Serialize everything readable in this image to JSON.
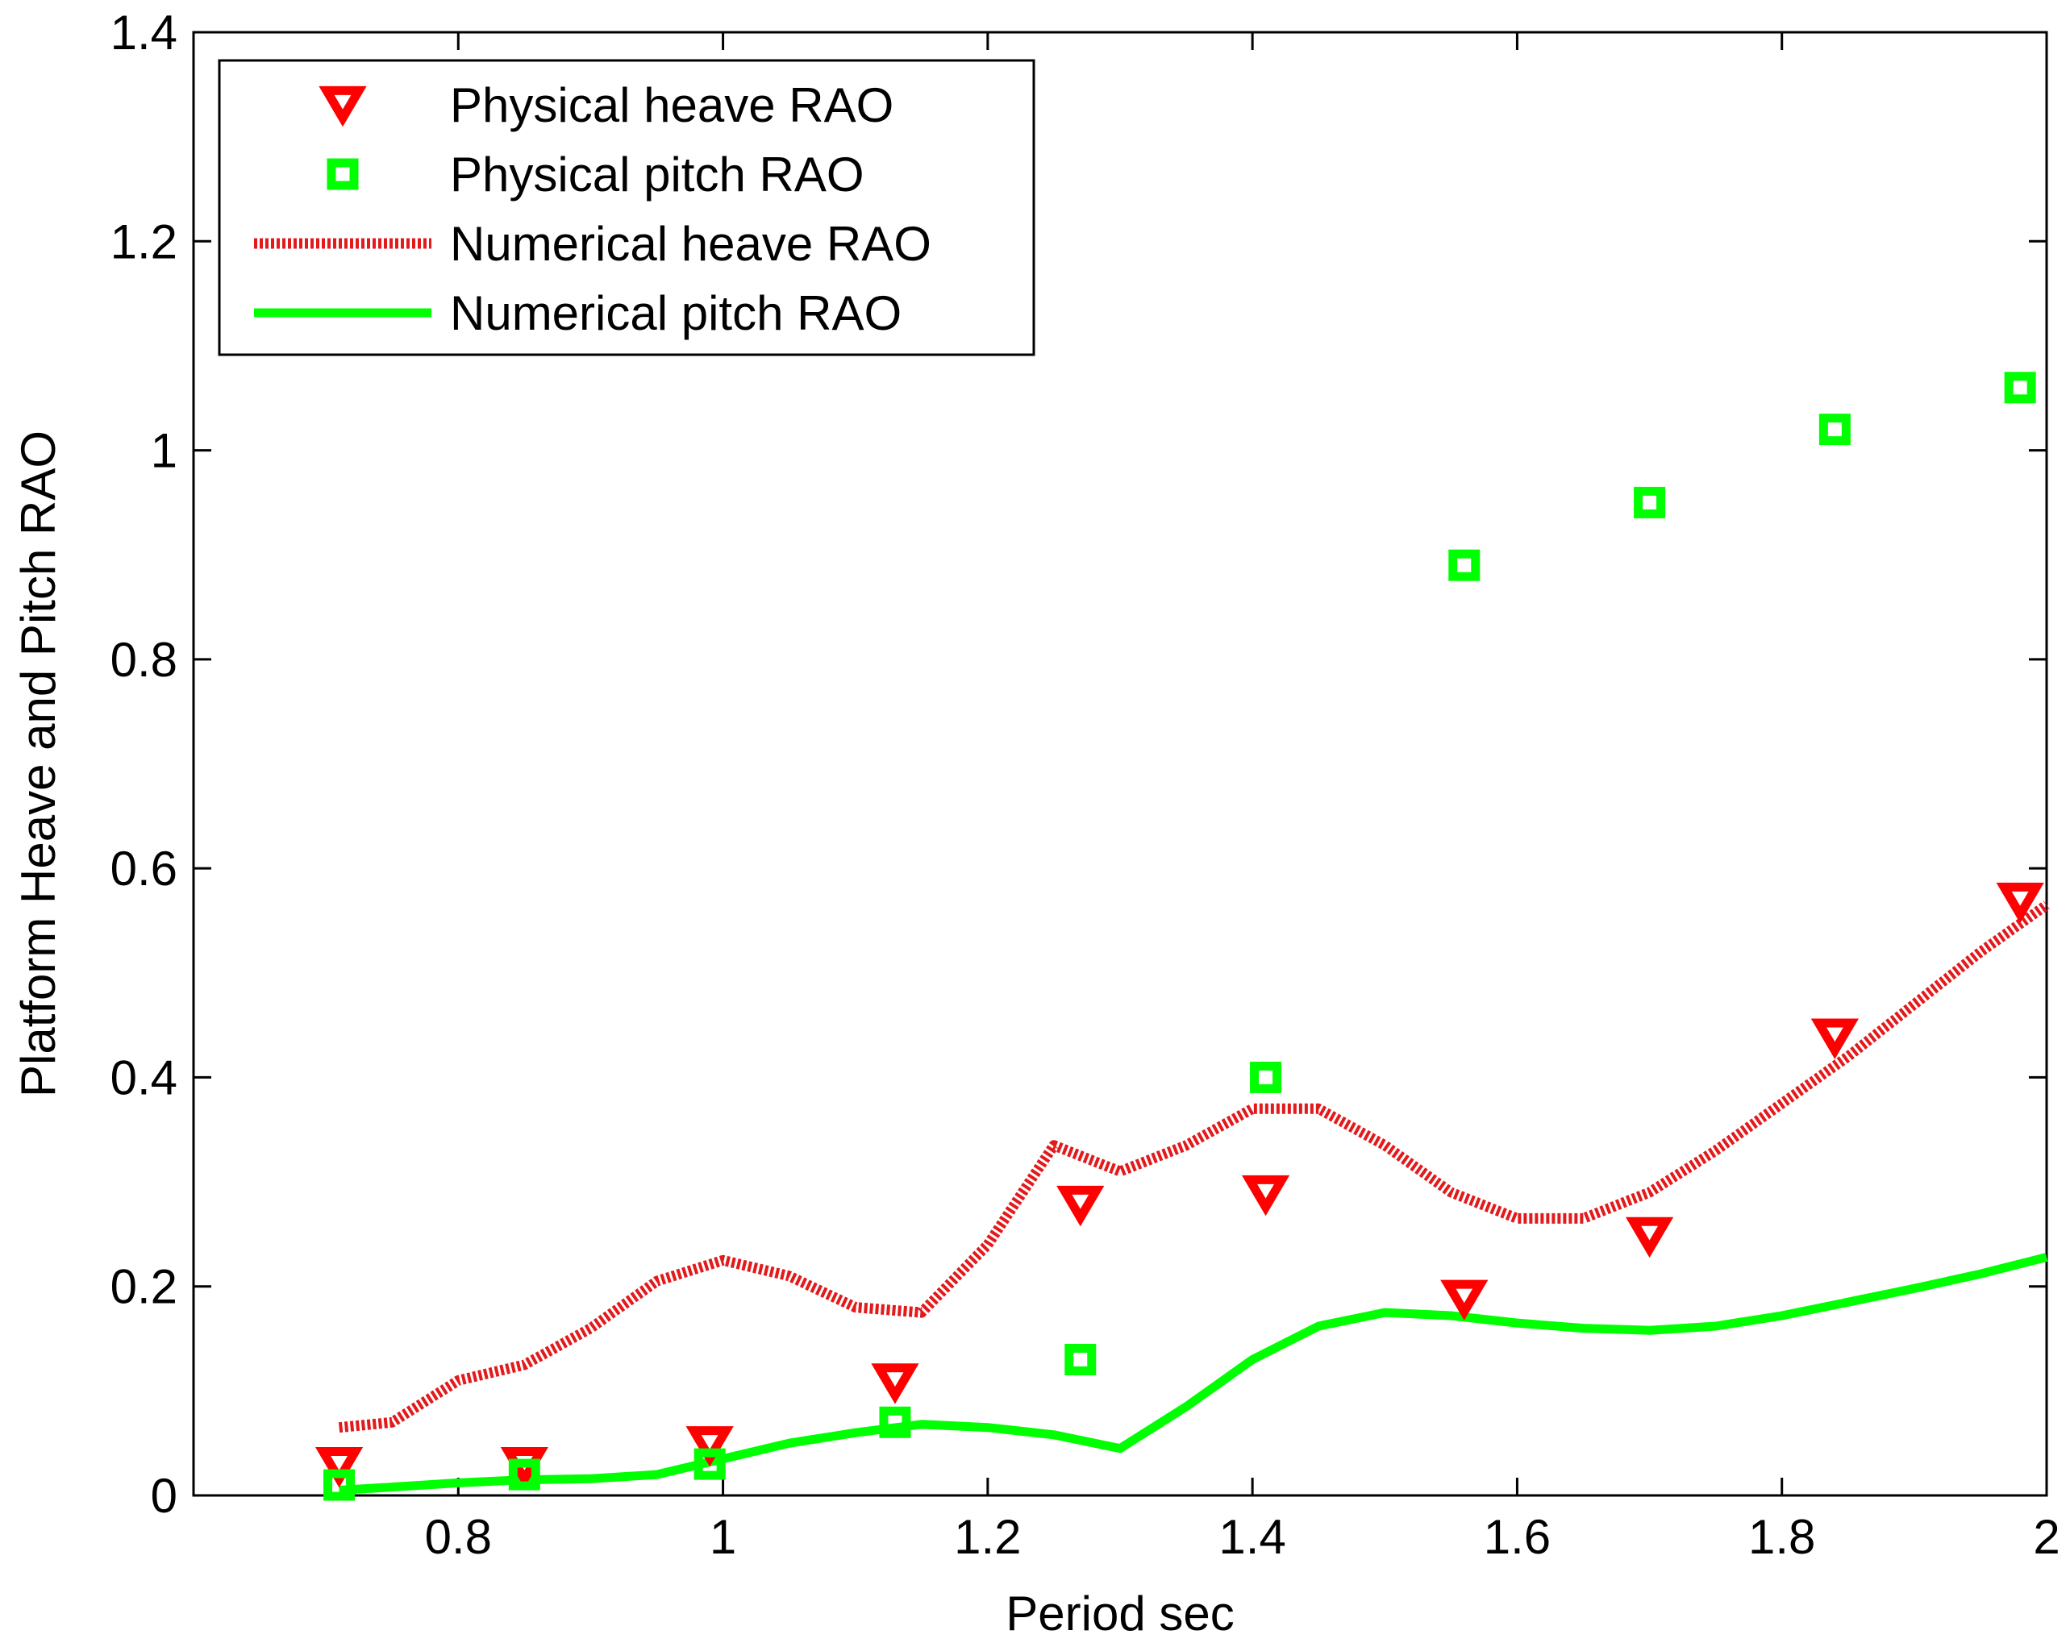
{
  "chart_data": {
    "type": "line",
    "title": "",
    "xlabel": "Period sec",
    "ylabel": "Platform Heave and Pitch RAO",
    "xlim": [
      0.6,
      2.0
    ],
    "ylim": [
      0,
      1.4
    ],
    "x_ticks": [
      0.8,
      1,
      1.2,
      1.4,
      1.6,
      1.8,
      2
    ],
    "x_tick_labels": [
      "0.8",
      "1",
      "1.2",
      "1.4",
      "1.6",
      "1.8",
      "2"
    ],
    "y_ticks": [
      0,
      0.2,
      0.4,
      0.6,
      0.8,
      1,
      1.2,
      1.4
    ],
    "y_tick_labels": [
      "0",
      "0.2",
      "0.4",
      "0.6",
      "0.8",
      "1",
      "1.2",
      "1.4"
    ],
    "grid": false,
    "legend_position": "top-left",
    "series": [
      {
        "name": "Physical heave RAO",
        "kind": "marker",
        "marker": "triangle-down",
        "color": "#ff0000",
        "x": [
          0.71,
          0.85,
          0.99,
          1.13,
          1.27,
          1.41,
          1.56,
          1.7,
          1.84,
          1.98
        ],
        "y": [
          0.03,
          0.03,
          0.05,
          0.11,
          0.28,
          0.29,
          0.19,
          0.25,
          0.44,
          0.57
        ]
      },
      {
        "name": "Physical pitch RAO",
        "kind": "marker",
        "marker": "square",
        "color": "#00ff00",
        "x": [
          0.71,
          0.85,
          0.99,
          1.13,
          1.27,
          1.41,
          1.56,
          1.7,
          1.84,
          1.98
        ],
        "y": [
          0.01,
          0.02,
          0.03,
          0.07,
          0.13,
          0.4,
          0.89,
          0.95,
          1.02,
          1.06
        ]
      },
      {
        "name": "Numerical heave RAO",
        "kind": "line",
        "dash": "dotted",
        "color": "#e31a1c",
        "x": [
          0.71,
          0.75,
          0.8,
          0.85,
          0.9,
          0.95,
          1.0,
          1.05,
          1.1,
          1.15,
          1.2,
          1.25,
          1.3,
          1.35,
          1.4,
          1.45,
          1.5,
          1.55,
          1.6,
          1.65,
          1.7,
          1.75,
          1.8,
          1.85,
          1.9,
          1.95,
          2.0
        ],
        "y": [
          0.065,
          0.07,
          0.11,
          0.125,
          0.16,
          0.205,
          0.225,
          0.21,
          0.18,
          0.175,
          0.24,
          0.335,
          0.31,
          0.335,
          0.37,
          0.37,
          0.335,
          0.29,
          0.265,
          0.265,
          0.29,
          0.33,
          0.375,
          0.42,
          0.47,
          0.52,
          0.565
        ]
      },
      {
        "name": "Numerical pitch RAO",
        "kind": "line",
        "dash": "solid",
        "color": "#00ff00",
        "x": [
          0.71,
          0.75,
          0.8,
          0.85,
          0.9,
          0.95,
          1.0,
          1.05,
          1.1,
          1.15,
          1.2,
          1.25,
          1.3,
          1.35,
          1.4,
          1.45,
          1.5,
          1.55,
          1.6,
          1.65,
          1.7,
          1.75,
          1.8,
          1.85,
          1.9,
          1.95,
          2.0
        ],
        "y": [
          0.005,
          0.008,
          0.012,
          0.015,
          0.016,
          0.02,
          0.035,
          0.05,
          0.06,
          0.068,
          0.065,
          0.058,
          0.045,
          0.085,
          0.13,
          0.162,
          0.175,
          0.172,
          0.165,
          0.16,
          0.158,
          0.162,
          0.172,
          0.185,
          0.198,
          0.212,
          0.228
        ]
      }
    ]
  }
}
